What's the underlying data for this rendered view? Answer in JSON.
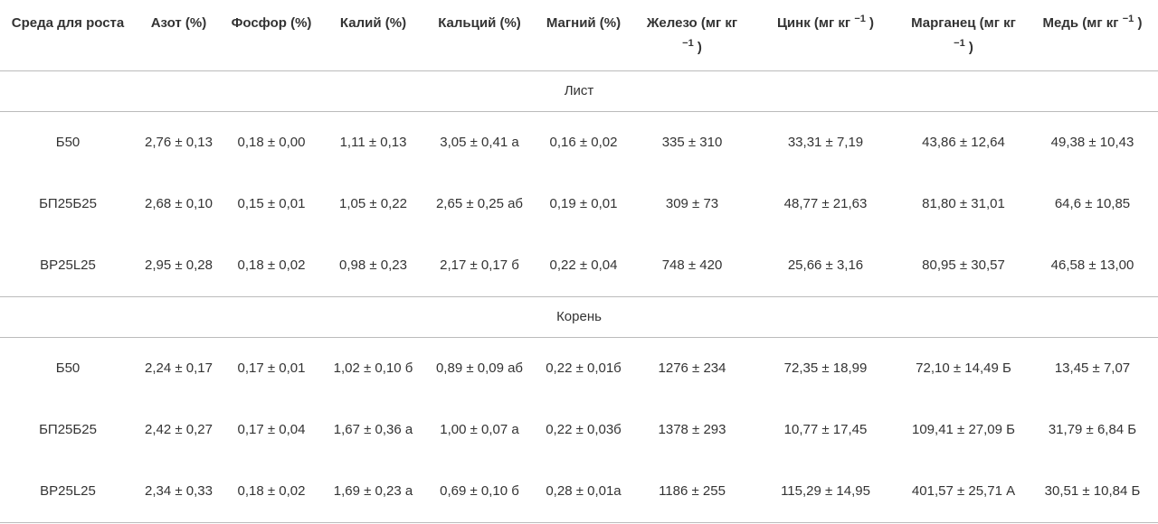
{
  "table": {
    "header": [
      {
        "text": "Среда для роста"
      },
      {
        "text": "Азот (%)"
      },
      {
        "text": "Фосфор (%)"
      },
      {
        "text": "Калий (%)"
      },
      {
        "text": "Кальций (%)"
      },
      {
        "text": "Магний (%)"
      },
      {
        "text": "Железо (мг кг",
        "sup": "−1",
        "tail": ")"
      },
      {
        "text": "Цинк (мг кг",
        "sup": "−1",
        "tail": ")"
      },
      {
        "text": "Марганец (мг кг",
        "sup": "−1",
        "tail": ")"
      },
      {
        "text": "Медь (мг кг",
        "sup": "−1",
        "tail": ")"
      }
    ],
    "sections": [
      {
        "title": "Лист",
        "rows": [
          [
            "Б50",
            "2,76 ± 0,13",
            "0,18 ± 0,00",
            "1,11 ± 0,13",
            "3,05 ± 0,41 а",
            "0,16 ± 0,02",
            "335 ± 310",
            "33,31 ± 7,19",
            "43,86 ± 12,64",
            "49,38 ± 10,43"
          ],
          [
            "БП25Б25",
            "2,68 ± 0,10",
            "0,15 ± 0,01",
            "1,05 ± 0,22",
            "2,65 ± 0,25 аб",
            "0,19 ± 0,01",
            "309 ± 73",
            "48,77 ± 21,63",
            "81,80 ± 31,01",
            "64,6 ± 10,85"
          ],
          [
            "BP25L25",
            "2,95 ± 0,28",
            "0,18 ± 0,02",
            "0,98 ± 0,23",
            "2,17 ± 0,17 б",
            "0,22 ± 0,04",
            "748 ± 420",
            "25,66 ± 3,16",
            "80,95 ± 30,57",
            "46,58 ± 13,00"
          ]
        ]
      },
      {
        "title": "Корень",
        "rows": [
          [
            "Б50",
            "2,24 ± 0,17",
            "0,17 ± 0,01",
            "1,02 ± 0,10 б",
            "0,89 ± 0,09 аб",
            "0,22 ± 0,01б",
            "1276 ± 234",
            "72,35 ± 18,99",
            "72,10 ± 14,49 Б",
            "13,45 ± 7,07"
          ],
          [
            "БП25Б25",
            "2,42 ± 0,27",
            "0,17 ± 0,04",
            "1,67 ± 0,36 а",
            "1,00 ± 0,07 а",
            "0,22 ± 0,03б",
            "1378 ± 293",
            "10,77 ± 17,45",
            "109,41 ± 27,09 Б",
            "31,79 ± 6,84 Б"
          ],
          [
            "BP25L25",
            "2,34 ± 0,33",
            "0,18 ± 0,02",
            "1,69 ± 0,23 а",
            "0,69 ± 0,10 б",
            "0,28 ± 0,01а",
            "1186 ± 255",
            "115,29 ± 14,95",
            "401,57 ± 25,71 А",
            "30,51 ± 10,84 Б"
          ]
        ]
      }
    ]
  }
}
